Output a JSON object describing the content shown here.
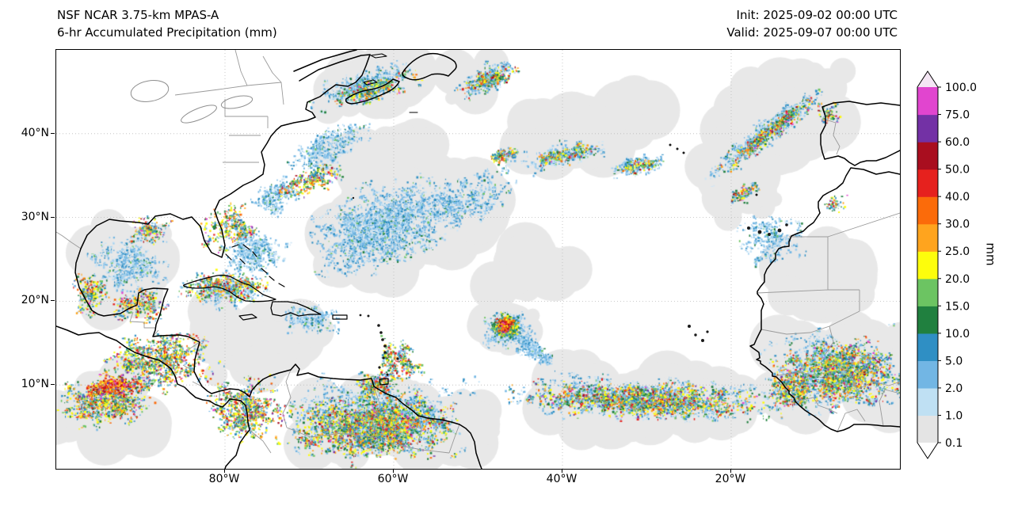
{
  "header": {
    "title_line1": "NSF NCAR 3.75-km MPAS-A",
    "title_line2": "6-hr Accumulated Precipitation (mm)",
    "init_line": "Init: 2025-09-02 00:00 UTC",
    "valid_line": "Valid: 2025-09-07 00:00 UTC"
  },
  "axes": {
    "x_ticks": [
      {
        "label": "80°W",
        "lon": -80
      },
      {
        "label": "60°W",
        "lon": -60
      },
      {
        "label": "40°W",
        "lon": -40
      },
      {
        "label": "20°W",
        "lon": -20
      }
    ],
    "y_ticks": [
      {
        "label": "40°N",
        "lat": 40
      },
      {
        "label": "30°N",
        "lat": 30
      },
      {
        "label": "20°N",
        "lat": 20
      },
      {
        "label": "10°N",
        "lat": 10
      }
    ]
  },
  "colorbar": {
    "label": "mm",
    "boundaries": [
      "100.0",
      "75.0",
      "60.0",
      "50.0",
      "40.0",
      "30.0",
      "25.0",
      "20.0",
      "15.0",
      "10.0",
      "5.0",
      "2.0",
      "1.0",
      "0.1"
    ],
    "segment_colors_bottom_to_top": [
      "#e4e4e4",
      "#bfe0f3",
      "#72b6e4",
      "#2f8fc4",
      "#20803f",
      "#6cc462",
      "#fdfd0c",
      "#ffa41e",
      "#fb6b0a",
      "#e6211e",
      "#a90e1f",
      "#7331a5",
      "#e145cf"
    ],
    "over_color": "#f4e6f4",
    "under_color": "#ffffff"
  },
  "chart_data": {
    "type": "heatmap",
    "title": "NSF NCAR 3.75-km MPAS-A 6-hr Accumulated Precipitation (mm)",
    "init_time": "2025-09-02 00:00 UTC",
    "valid_time": "2025-09-07 00:00 UTC",
    "units": "mm",
    "extent": {
      "lon_min": -100,
      "lon_max": 0,
      "lat_min": 0,
      "lat_max": 50
    },
    "levels_mm": [
      0.1,
      1.0,
      2.0,
      5.0,
      10.0,
      15.0,
      20.0,
      25.0,
      30.0,
      40.0,
      50.0,
      60.0,
      75.0,
      100.0
    ],
    "palettes": {
      "gray_fill": "#e8e8e8",
      "blue": [
        [
          "#cfe6f5",
          26
        ],
        [
          "#9fd0ef",
          22
        ],
        [
          "#72b6e4",
          28
        ],
        [
          "#2f8fc4",
          18
        ],
        [
          "#20803f",
          3
        ],
        [
          "#6cc462",
          3
        ]
      ],
      "conv": [
        [
          "#72b6e4",
          13
        ],
        [
          "#2f8fc4",
          15
        ],
        [
          "#20803f",
          14
        ],
        [
          "#6cc462",
          12
        ],
        [
          "#fdfd0c",
          17
        ],
        [
          "#ffa41e",
          10
        ],
        [
          "#fb6b0a",
          6
        ],
        [
          "#e6211e",
          6
        ],
        [
          "#a90e1f",
          2.5
        ],
        [
          "#7331a5",
          2
        ],
        [
          "#e145cf",
          2.5
        ]
      ],
      "hot": [
        [
          "#fdfd0c",
          14
        ],
        [
          "#ffa41e",
          20
        ],
        [
          "#fb6b0a",
          20
        ],
        [
          "#e6211e",
          22
        ],
        [
          "#a90e1f",
          12
        ],
        [
          "#e145cf",
          8
        ],
        [
          "#7331a5",
          4
        ]
      ],
      "storm_mid": [
        [
          "#2f8fc4",
          20
        ],
        [
          "#20803f",
          25
        ],
        [
          "#6cc462",
          25
        ],
        [
          "#fdfd0c",
          20
        ],
        [
          "#ffa41e",
          10
        ]
      ]
    },
    "precip_regions": [
      {
        "name": "natl-front-west",
        "kind": "fill",
        "lon": -36,
        "lat": 40.5,
        "rlon": 11,
        "rlat": 4.5,
        "rot": -15,
        "n": 55
      },
      {
        "name": "natl-front-east",
        "kind": "fill",
        "lon": -14,
        "lat": 42,
        "rlon": 12,
        "rlat": 7,
        "rot": -30,
        "n": 85
      },
      {
        "name": "natl-front-band",
        "kind": "fill",
        "lon": -16,
        "lat": 40,
        "rlon": 11,
        "rlat": 3,
        "rot": -39,
        "n": 45
      },
      {
        "name": "central-atlantic",
        "kind": "fill",
        "lon": -52,
        "lat": 31,
        "rlon": 9,
        "rlat": 5,
        "rot": -20,
        "n": 45
      },
      {
        "name": "west-atlantic",
        "kind": "fill",
        "lon": -61,
        "lat": 29,
        "rlon": 12,
        "rlat": 7,
        "rot": -20,
        "n": 85
      },
      {
        "name": "sargasso",
        "kind": "fill",
        "lon": -44,
        "lat": 24,
        "rlon": 7,
        "rlat": 4,
        "rot": 0,
        "n": 22
      },
      {
        "name": "gulf-of-mexico",
        "kind": "fill",
        "lon": -92,
        "lat": 24,
        "rlon": 7,
        "rlat": 6,
        "rot": 0,
        "n": 45
      },
      {
        "name": "caribbean",
        "kind": "fill",
        "lon": -75,
        "lat": 15,
        "rlon": 10,
        "rlat": 4.5,
        "rot": 0,
        "n": 35
      },
      {
        "name": "itcz-gray",
        "kind": "fill",
        "lon": -30,
        "lat": 8,
        "rlon": 21,
        "rlat": 4,
        "rot": 2,
        "n": 90
      },
      {
        "name": "south-america-gray",
        "kind": "fill",
        "lon": -60,
        "lat": 5.5,
        "rlon": 14,
        "rlat": 6,
        "rot": 0,
        "n": 85
      },
      {
        "name": "africa-gray",
        "kind": "fill",
        "lon": -7,
        "lat": 12,
        "rlon": 10,
        "rlat": 6.5,
        "rot": 0,
        "n": 60
      },
      {
        "name": "africa-north-gray",
        "kind": "fill",
        "lon": -9,
        "lat": 22,
        "rlon": 8,
        "rlat": 5,
        "rot": 0,
        "n": 22
      },
      {
        "name": "storm-shield",
        "kind": "fill",
        "lon": -46.6,
        "lat": 17,
        "rlon": 4.2,
        "rlat": 3.2,
        "rot": 0,
        "n": 30
      },
      {
        "name": "maritime-gray",
        "kind": "fill",
        "lon": -63,
        "lat": 46,
        "rlon": 8,
        "rlat": 3,
        "rot": -18,
        "n": 35
      },
      {
        "name": "midatl-gray",
        "kind": "fill",
        "lon": -60,
        "lat": 37.5,
        "rlon": 8,
        "rlat": 3,
        "rot": -20,
        "n": 28
      },
      {
        "name": "east-pacific-gray",
        "kind": "fill",
        "lon": -94,
        "lat": 6.5,
        "rlon": 7,
        "rlat": 5,
        "rot": 0,
        "n": 50
      },
      {
        "name": "madeira-gray",
        "kind": "fill",
        "lon": -18,
        "lat": 32.5,
        "rlon": 5,
        "rlat": 3,
        "rot": -20,
        "n": 16
      },
      {
        "name": "newfoundland-gray",
        "kind": "fill",
        "lon": -50,
        "lat": 46.5,
        "rlon": 5,
        "rlat": 3,
        "rot": -25,
        "n": 22
      },
      {
        "name": "west-atl-blue",
        "kind": "speck",
        "p": "blue",
        "lon": -61.5,
        "lat": 29,
        "rlon": 10.5,
        "rlat": 6,
        "rot": -20,
        "n": 650
      },
      {
        "name": "bahamas-blue",
        "kind": "speck",
        "p": "blue",
        "lon": -76.5,
        "lat": 26,
        "rlon": 4.5,
        "rlat": 3,
        "rot": 0,
        "n": 150
      },
      {
        "name": "gulf-blue",
        "kind": "speck",
        "p": "blue",
        "lon": -91.5,
        "lat": 24.5,
        "rlon": 6,
        "rlat": 4.5,
        "rot": 0,
        "n": 170
      },
      {
        "name": "necoast-blue",
        "kind": "speck",
        "p": "blue",
        "lon": -68,
        "lat": 38.5,
        "rlon": 6,
        "rlat": 2.5,
        "rot": -30,
        "n": 140
      },
      {
        "name": "maritime-blue",
        "kind": "speck",
        "p": "blue",
        "lon": -63.5,
        "lat": 45.8,
        "rlon": 7.5,
        "rlat": 2.2,
        "rot": -18,
        "n": 170
      },
      {
        "name": "central-atl-blue",
        "kind": "speck",
        "p": "blue",
        "lon": -52,
        "lat": 32,
        "rlon": 8,
        "rlat": 3.5,
        "rot": -22,
        "n": 170
      },
      {
        "name": "itcz-blue",
        "kind": "speck",
        "p": "blue",
        "lon": -31,
        "lat": 8.5,
        "rlon": 20,
        "rlat": 3.2,
        "rot": 2,
        "n": 350
      },
      {
        "name": "south-america-blue",
        "kind": "speck",
        "p": "blue",
        "lon": -62,
        "lat": 6.5,
        "rlon": 13,
        "rlat": 5.5,
        "rot": 0,
        "n": 380
      },
      {
        "name": "africa-blue",
        "kind": "speck",
        "p": "blue",
        "lon": -8,
        "lat": 12,
        "rlon": 9.5,
        "rlat": 6,
        "rot": 0,
        "n": 250
      },
      {
        "name": "canary-blue",
        "kind": "speck",
        "p": "blue",
        "lon": -15.5,
        "lat": 27.5,
        "rlon": 5,
        "rlat": 4,
        "rot": 0,
        "n": 90
      },
      {
        "name": "storm-outer-blue",
        "kind": "speck",
        "p": "blue",
        "lon": -46.6,
        "lat": 16.8,
        "rlon": 3.4,
        "rlat": 2.6,
        "rot": 0,
        "n": 140
      },
      {
        "name": "front-band-blue",
        "kind": "speck",
        "p": "blue",
        "lon": -16,
        "lat": 40.3,
        "rlon": 10,
        "rlat": 1.6,
        "rot": -39,
        "n": 190
      },
      {
        "name": "front-west-blue",
        "kind": "speck",
        "p": "blue",
        "lon": -40,
        "lat": 37.5,
        "rlon": 6,
        "rlat": 1.5,
        "rot": -12,
        "n": 100
      },
      {
        "name": "front-mid-blue",
        "kind": "speck",
        "p": "blue",
        "lon": -31,
        "lat": 36.3,
        "rlon": 4,
        "rlat": 1.2,
        "rot": -10,
        "n": 60
      },
      {
        "name": "storm-band1-blue",
        "kind": "speck",
        "p": "blue",
        "lon": -44.3,
        "lat": 15,
        "rlon": 3,
        "rlat": 0.9,
        "rot": 30,
        "n": 65
      },
      {
        "name": "storm-band2-blue",
        "kind": "speck",
        "p": "blue",
        "lon": -43,
        "lat": 13.6,
        "rlon": 3.2,
        "rlat": 0.8,
        "rot": 20,
        "n": 55
      },
      {
        "name": "hispaniola-blue",
        "kind": "speck",
        "p": "blue",
        "lon": -70,
        "lat": 18,
        "rlon": 5,
        "rlat": 2,
        "rot": 0,
        "n": 75
      },
      {
        "name": "cuba-blue",
        "kind": "speck",
        "p": "blue",
        "lon": -80,
        "lat": 21.5,
        "rlon": 6,
        "rlat": 2.5,
        "rot": 0,
        "n": 100
      },
      {
        "name": "gulfstream-blue",
        "kind": "speck",
        "p": "blue",
        "lon": -74,
        "lat": 32.5,
        "rlon": 4,
        "rlat": 2,
        "rot": -35,
        "n": 75
      },
      {
        "name": "newfoundland-blue",
        "kind": "speck",
        "p": "blue",
        "lon": -49,
        "lat": 46.5,
        "rlon": 5,
        "rlat": 2,
        "rot": -25,
        "n": 75
      },
      {
        "name": "itcz-conv",
        "kind": "speck",
        "p": "conv",
        "lon": -31,
        "lat": 8.3,
        "rlon": 19,
        "rlat": 2.6,
        "rot": 2,
        "n": 450
      },
      {
        "name": "south-america-conv",
        "kind": "speck",
        "p": "conv",
        "lon": -62.5,
        "lat": 5,
        "rlon": 12,
        "rlat": 4.8,
        "rot": 0,
        "n": 650
      },
      {
        "name": "colombia-conv",
        "kind": "speck",
        "p": "conv",
        "lon": -77.5,
        "lat": 7,
        "rlon": 5,
        "rlat": 4.5,
        "rot": 0,
        "n": 200
      },
      {
        "name": "central-america-conv",
        "kind": "speck",
        "p": "conv",
        "lon": -88,
        "lat": 13,
        "rlon": 8,
        "rlat": 4.5,
        "rot": -15,
        "n": 280
      },
      {
        "name": "east-pacific-conv",
        "kind": "speck",
        "p": "conv",
        "lon": -94,
        "lat": 8,
        "rlon": 7,
        "rlat": 3.5,
        "rot": -5,
        "n": 250
      },
      {
        "name": "east-pacific-hot",
        "kind": "speck",
        "p": "hot",
        "lon": -93.5,
        "lat": 10,
        "rlon": 4,
        "rlat": 1.5,
        "rot": -8,
        "n": 90
      },
      {
        "name": "cuba-conv",
        "kind": "speck",
        "p": "conv",
        "lon": -80,
        "lat": 21.8,
        "rlon": 6,
        "rlat": 2.2,
        "rot": 0,
        "n": 110
      },
      {
        "name": "florida-conv",
        "kind": "speck",
        "p": "conv",
        "lon": -79.5,
        "lat": 29,
        "rlon": 4,
        "rlat": 3.5,
        "rot": 0,
        "n": 75
      },
      {
        "name": "louisiana-conv",
        "kind": "speck",
        "p": "conv",
        "lon": -89,
        "lat": 28.5,
        "rlon": 3,
        "rlat": 2,
        "rot": 0,
        "n": 50
      },
      {
        "name": "carolinas-conv",
        "kind": "speck",
        "p": "conv",
        "lon": -70,
        "lat": 34.5,
        "rlon": 5,
        "rlat": 1.8,
        "rot": -20,
        "n": 65
      },
      {
        "name": "africa-conv",
        "kind": "speck",
        "p": "conv",
        "lon": -7,
        "lat": 11.5,
        "rlon": 9,
        "rlat": 5,
        "rot": 0,
        "n": 430
      },
      {
        "name": "guinea-conv",
        "kind": "speck",
        "p": "conv",
        "lon": -13,
        "lat": 9.5,
        "rlon": 3.5,
        "rlat": 2.5,
        "rot": 0,
        "n": 90
      },
      {
        "name": "front-band-conv",
        "kind": "speck",
        "p": "conv",
        "lon": -15.5,
        "lat": 40.3,
        "rlon": 9.5,
        "rlat": 1.1,
        "rot": -39,
        "n": 125
      },
      {
        "name": "front-west-conv",
        "kind": "speck",
        "p": "conv",
        "lon": -40,
        "lat": 37.5,
        "rlon": 5.5,
        "rlat": 1,
        "rot": -12,
        "n": 50
      },
      {
        "name": "front-mid-conv",
        "kind": "speck",
        "p": "conv",
        "lon": -31,
        "lat": 36.3,
        "rlon": 3.5,
        "rlat": 0.8,
        "rot": -10,
        "n": 35
      },
      {
        "name": "midatl-conv",
        "kind": "speck",
        "p": "conv",
        "lon": -47,
        "lat": 37.5,
        "rlon": 2.5,
        "rlat": 0.8,
        "rot": -20,
        "n": 33
      },
      {
        "name": "maritime-conv",
        "kind": "speck",
        "p": "conv",
        "lon": -62,
        "lat": 45.5,
        "rlon": 6,
        "rlat": 1.5,
        "rot": -18,
        "n": 75
      },
      {
        "name": "newfoundland-conv",
        "kind": "speck",
        "p": "conv",
        "lon": -49,
        "lat": 46.5,
        "rlon": 4,
        "rlat": 1.5,
        "rot": -25,
        "n": 55
      },
      {
        "name": "yucatan-conv",
        "kind": "speck",
        "p": "conv",
        "lon": -90,
        "lat": 19.5,
        "rlon": 3.5,
        "rlat": 2.5,
        "rot": 0,
        "n": 75
      },
      {
        "name": "antilles-conv",
        "kind": "speck",
        "p": "conv",
        "lon": -59.5,
        "lat": 13,
        "rlon": 3,
        "rlat": 3,
        "rot": 0,
        "n": 75
      },
      {
        "name": "texas-conv",
        "kind": "speck",
        "p": "conv",
        "lon": -96,
        "lat": 21,
        "rlon": 3,
        "rlat": 3,
        "rot": 0,
        "n": 60
      },
      {
        "name": "trinidad-conv",
        "kind": "speck",
        "p": "conv",
        "lon": -62,
        "lat": 10,
        "rlon": 3,
        "rlat": 2,
        "rot": 0,
        "n": 60
      },
      {
        "name": "storm-mid",
        "kind": "speck",
        "p": "storm_mid",
        "lon": -46.7,
        "lat": 17,
        "rlon": 2.1,
        "rlat": 1.6,
        "rot": 0,
        "n": 105
      },
      {
        "name": "storm-core",
        "kind": "speck",
        "p": "hot",
        "lon": -46.8,
        "lat": 17.2,
        "rlon": 1.05,
        "rlat": 0.75,
        "rot": 0,
        "n": 55
      },
      {
        "name": "madeira-conv",
        "kind": "speck",
        "p": "conv",
        "lon": -18.5,
        "lat": 33,
        "rlon": 3,
        "rlat": 0.8,
        "rot": -25,
        "n": 30
      },
      {
        "name": "iberia-conv",
        "kind": "speck",
        "p": "conv",
        "lon": -8.5,
        "lat": 42.5,
        "rlon": 1.5,
        "rlat": 1.5,
        "rot": 0,
        "n": 20
      },
      {
        "name": "morocco-conv",
        "kind": "speck",
        "p": "conv",
        "lon": -8,
        "lat": 32,
        "rlon": 2,
        "rlat": 1.5,
        "rot": 0,
        "n": 14
      }
    ]
  }
}
